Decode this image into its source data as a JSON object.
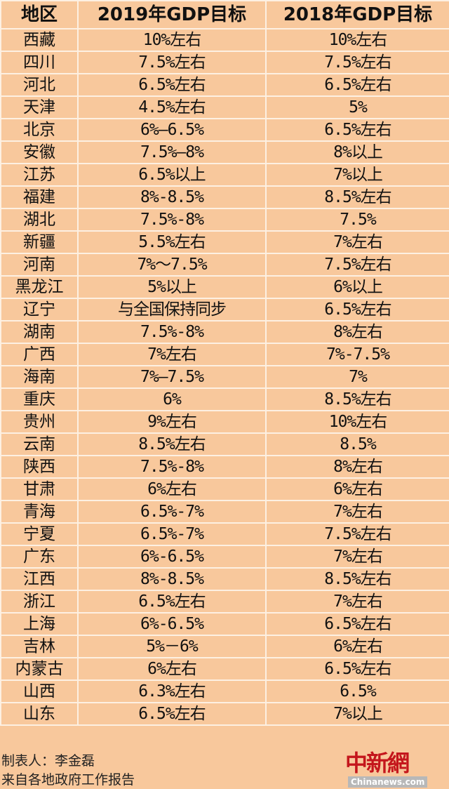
{
  "table": {
    "headers": [
      "地区",
      "2019年GDP目标",
      "2018年GDP目标"
    ],
    "rows": [
      [
        "西藏",
        "10%左右",
        "10%左右"
      ],
      [
        "四川",
        "7.5%左右",
        "7.5%左右"
      ],
      [
        "河北",
        "6.5%左右",
        "6.5%左右"
      ],
      [
        "天津",
        "4.5%左右",
        "5%"
      ],
      [
        "北京",
        "6%—6.5%",
        "6.5%左右"
      ],
      [
        "安徽",
        "7.5%—8%",
        "8%以上"
      ],
      [
        "江苏",
        "6.5%以上",
        "7%以上"
      ],
      [
        "福建",
        "8%-8.5%",
        "8.5%左右"
      ],
      [
        "湖北",
        "7.5%-8%",
        "7.5%"
      ],
      [
        "新疆",
        "5.5%左右",
        "7%左右"
      ],
      [
        "河南",
        "7%～7.5%",
        "7.5%左右"
      ],
      [
        "黑龙江",
        "5%以上",
        "6%以上"
      ],
      [
        "辽宁",
        "与全国保持同步",
        "6.5%左右"
      ],
      [
        "湖南",
        "7.5%-8%",
        "8%左右"
      ],
      [
        "广西",
        "7%左右",
        "7%-7.5%"
      ],
      [
        "海南",
        "7%—7.5%",
        "7%"
      ],
      [
        "重庆",
        "6%",
        "8.5%左右"
      ],
      [
        "贵州",
        "9%左右",
        "10%左右"
      ],
      [
        "云南",
        "8.5%左右",
        "8.5%"
      ],
      [
        "陕西",
        "7.5%-8%",
        "8%左右"
      ],
      [
        "甘肃",
        "6%左右",
        "6%左右"
      ],
      [
        "青海",
        "6.5%-7%",
        "7%左右"
      ],
      [
        "宁夏",
        "6.5%-7%",
        "7.5%左右"
      ],
      [
        "广东",
        "6%-6.5%",
        "7%左右"
      ],
      [
        "江西",
        "8%-8.5%",
        "8.5%左右"
      ],
      [
        "浙江",
        "6.5%左右",
        "7%左右"
      ],
      [
        "上海",
        "6%-6.5%",
        "6.5%左右"
      ],
      [
        "吉林",
        "5%－6%",
        "6%左右"
      ],
      [
        "内蒙古",
        "6%左右",
        "6.5%左右"
      ],
      [
        "山西",
        "6.3%左右",
        "6.5%"
      ],
      [
        "山东",
        "6.5%左右",
        "7%以上"
      ]
    ]
  },
  "footer": {
    "author": "制表人：李金磊",
    "source": "来自各地政府工作报告"
  },
  "watermark": {
    "logo_text": "中新網",
    "site": "Chinanews.com",
    "color": "#c4161c"
  },
  "colors": {
    "background": "#f8c89c",
    "grid": "#fdf0e2"
  }
}
